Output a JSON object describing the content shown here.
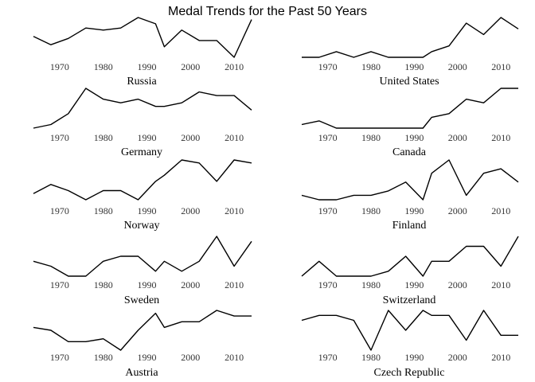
{
  "chart_data": {
    "type": "line",
    "title": "Medal Trends for the Past 50 Years",
    "x": [
      1964,
      1968,
      1972,
      1976,
      1980,
      1984,
      1988,
      1992,
      1994,
      1998,
      2002,
      2006,
      2010,
      2014
    ],
    "x_ticks": [
      "1970",
      "1980",
      "1990",
      "2000",
      "2010"
    ],
    "x_tick_values": [
      1970,
      1980,
      1990,
      2000,
      2010
    ],
    "xlim": [
      1964,
      2014
    ],
    "series": [
      {
        "name": "Russia",
        "values": [
          25,
          21,
          24,
          29,
          28,
          29,
          34,
          31,
          20,
          28,
          23,
          23,
          15,
          33
        ]
      },
      {
        "name": "United States",
        "values": [
          7,
          7,
          8,
          7,
          8,
          7,
          7,
          7,
          8,
          9,
          13,
          11,
          14,
          12
        ]
      },
      {
        "name": "Germany",
        "values": [
          10,
          11,
          14,
          21,
          18,
          17,
          18,
          16,
          16,
          17,
          20,
          19,
          19,
          15
        ]
      },
      {
        "name": "Canada",
        "values": [
          3,
          4,
          2,
          2,
          2,
          2,
          2,
          2,
          5,
          6,
          10,
          9,
          13,
          13
        ]
      },
      {
        "name": "Norway",
        "values": [
          15,
          18,
          16,
          13,
          16,
          16,
          13,
          19,
          21,
          26,
          25,
          19,
          26,
          25
        ]
      },
      {
        "name": "Finland",
        "values": [
          6,
          5,
          5,
          6,
          6,
          7,
          9,
          5,
          11,
          14,
          6,
          11,
          12,
          9
        ]
      },
      {
        "name": "Sweden",
        "values": [
          8,
          7,
          5,
          5,
          8,
          9,
          9,
          6,
          8,
          6,
          8,
          13,
          7,
          12
        ]
      },
      {
        "name": "Switzerland",
        "values": [
          4,
          7,
          4,
          4,
          4,
          5,
          8,
          4,
          7,
          7,
          10,
          10,
          6,
          12
        ]
      },
      {
        "name": "Austria",
        "values": [
          13,
          12,
          8,
          8,
          9,
          5,
          12,
          18,
          13,
          15,
          15,
          19,
          17,
          17
        ]
      },
      {
        "name": "Czech Republic",
        "values": [
          4,
          5,
          5,
          4,
          -2,
          6,
          2,
          6,
          5,
          5,
          0,
          6,
          1,
          1
        ]
      }
    ],
    "grid": false,
    "legend": "none"
  }
}
